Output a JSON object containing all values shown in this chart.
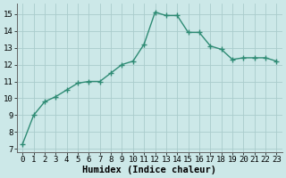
{
  "x": [
    0,
    1,
    2,
    3,
    4,
    5,
    6,
    7,
    8,
    9,
    10,
    11,
    12,
    13,
    14,
    15,
    16,
    17,
    18,
    19,
    20,
    21,
    22,
    23
  ],
  "y": [
    7.3,
    9.0,
    9.8,
    10.1,
    10.5,
    10.9,
    11.0,
    11.0,
    11.5,
    12.0,
    12.2,
    13.2,
    15.1,
    14.9,
    14.9,
    13.9,
    13.9,
    13.1,
    12.9,
    12.3,
    12.4,
    12.4,
    12.4,
    12.2
  ],
  "line_color": "#2e8b74",
  "marker": "+",
  "markersize": 4,
  "linewidth": 1.0,
  "bg_color": "#cce8e8",
  "grid_color": "#aacccc",
  "xlabel": "Humidex (Indice chaleur)",
  "xlabel_fontsize": 7.5,
  "xlim": [
    -0.5,
    23.5
  ],
  "ylim": [
    6.8,
    15.6
  ],
  "yticks": [
    7,
    8,
    9,
    10,
    11,
    12,
    13,
    14,
    15
  ],
  "xticks": [
    0,
    1,
    2,
    3,
    4,
    5,
    6,
    7,
    8,
    9,
    10,
    11,
    12,
    13,
    14,
    15,
    16,
    17,
    18,
    19,
    20,
    21,
    22,
    23
  ],
  "tick_fontsize": 6.5,
  "grid_linewidth": 0.6
}
